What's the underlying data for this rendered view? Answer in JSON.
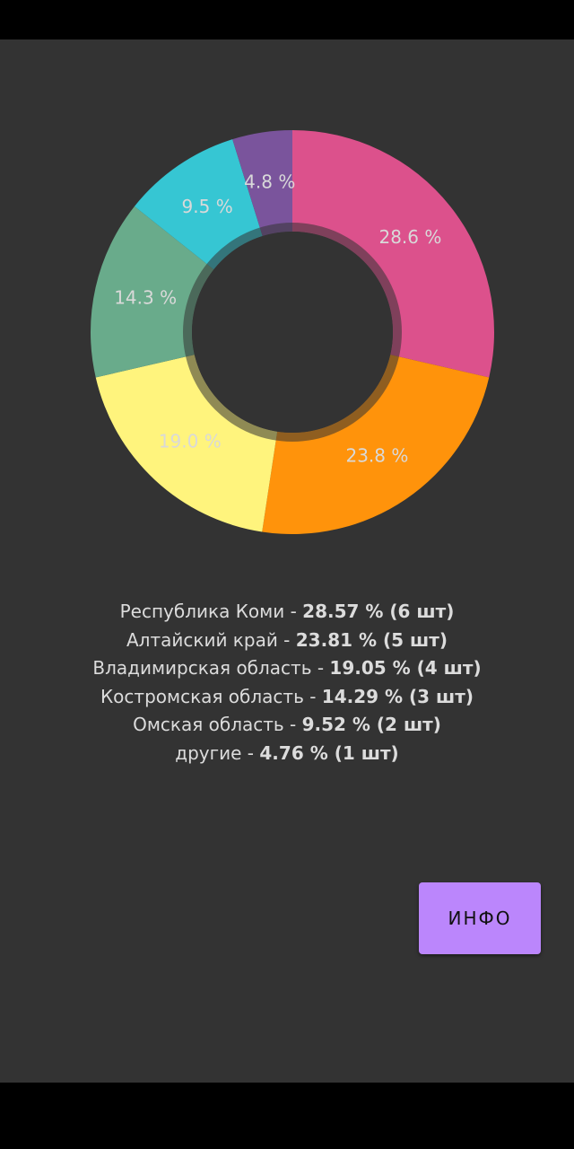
{
  "chart_data": {
    "type": "pie",
    "donut": true,
    "slices": [
      {
        "value": 28.6,
        "label": "28.6 %",
        "color": "#dc518c"
      },
      {
        "value": 23.8,
        "label": "23.8 %",
        "color": "#ff930b"
      },
      {
        "value": 19.0,
        "label": "19.0 %",
        "color": "#fff47d"
      },
      {
        "value": 14.3,
        "label": "14.3 %",
        "color": "#69ab8b"
      },
      {
        "value": 9.5,
        "label": "9.5 %",
        "color": "#36c6d3"
      },
      {
        "value": 4.8,
        "label": "4.8 %",
        "color": "#7a549c"
      }
    ]
  },
  "legend": [
    {
      "name": "Республика Коми - ",
      "stat": "28.57 % (6 шт)"
    },
    {
      "name": "Алтайский край - ",
      "stat": "23.81 % (5 шт)"
    },
    {
      "name": "Владимирская область - ",
      "stat": "19.05 % (4 шт)"
    },
    {
      "name": "Костромская область - ",
      "stat": "14.29 % (3 шт)"
    },
    {
      "name": "Омская область - ",
      "stat": "9.52 % (2 шт)"
    },
    {
      "name": "другие - ",
      "stat": "4.76 % (1 шт)"
    }
  ],
  "info_button": {
    "label": "ИНФО"
  }
}
